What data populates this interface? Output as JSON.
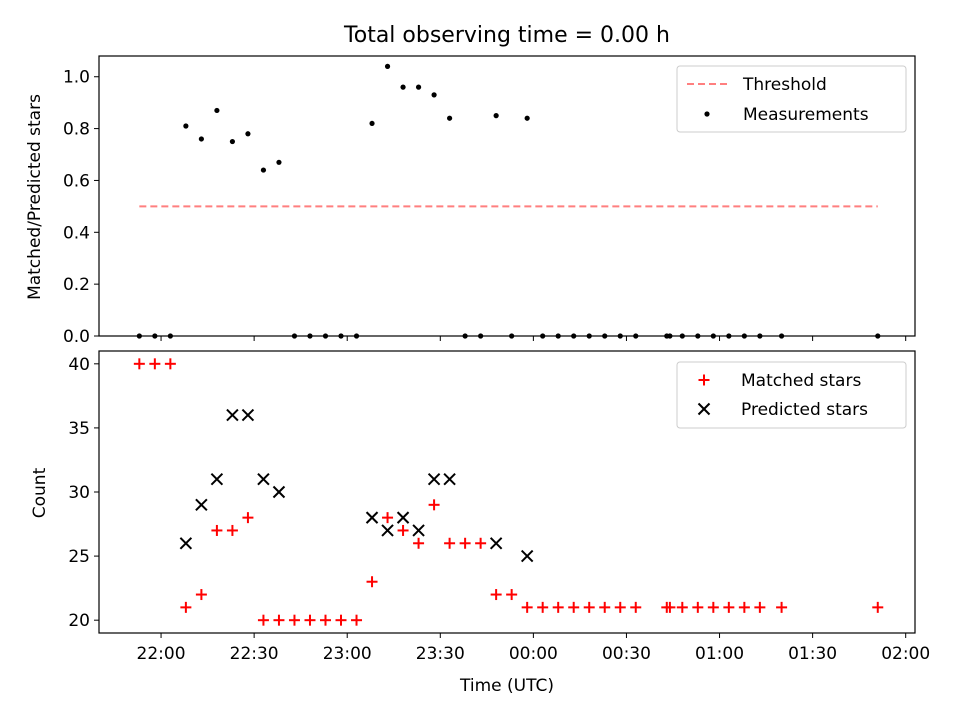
{
  "chart_data": [
    {
      "type": "scatter",
      "title": "Total observing time = 0.00 h",
      "xlabel": "",
      "ylabel": "Matched/Predicted stars",
      "ylim": [
        0,
        1.08
      ],
      "yticks": [
        "0.0",
        "0.2",
        "0.4",
        "0.6",
        "0.8",
        "1.0"
      ],
      "legend_position": "top-right",
      "threshold": {
        "name": "Threshold",
        "value": 0.5,
        "x_start": "21:53",
        "x_end": "01:51",
        "color": "#ff7f7f"
      },
      "series": [
        {
          "name": "Measurements",
          "color": "#000000",
          "points": [
            [
              "21:53",
              0.0
            ],
            [
              "21:58",
              0.0
            ],
            [
              "22:03",
              0.0
            ],
            [
              "22:08",
              0.81
            ],
            [
              "22:13",
              0.76
            ],
            [
              "22:18",
              0.87
            ],
            [
              "22:23",
              0.75
            ],
            [
              "22:28",
              0.78
            ],
            [
              "22:33",
              0.64
            ],
            [
              "22:38",
              0.67
            ],
            [
              "22:43",
              0.0
            ],
            [
              "22:48",
              0.0
            ],
            [
              "22:53",
              0.0
            ],
            [
              "22:58",
              0.0
            ],
            [
              "23:03",
              0.0
            ],
            [
              "23:08",
              0.82
            ],
            [
              "23:13",
              1.04
            ],
            [
              "23:18",
              0.96
            ],
            [
              "23:23",
              0.96
            ],
            [
              "23:28",
              0.93
            ],
            [
              "23:33",
              0.84
            ],
            [
              "23:38",
              0.0
            ],
            [
              "23:43",
              0.0
            ],
            [
              "23:48",
              0.85
            ],
            [
              "23:53",
              0.0
            ],
            [
              "23:58",
              0.84
            ],
            [
              "00:03",
              0.0
            ],
            [
              "00:08",
              0.0
            ],
            [
              "00:13",
              0.0
            ],
            [
              "00:18",
              0.0
            ],
            [
              "00:23",
              0.0
            ],
            [
              "00:28",
              0.0
            ],
            [
              "00:33",
              0.0
            ],
            [
              "00:43",
              0.0
            ],
            [
              "00:44",
              0.0
            ],
            [
              "00:48",
              0.0
            ],
            [
              "00:53",
              0.0
            ],
            [
              "00:58",
              0.0
            ],
            [
              "01:03",
              0.0
            ],
            [
              "01:08",
              0.0
            ],
            [
              "01:13",
              0.0
            ],
            [
              "01:20",
              0.0
            ],
            [
              "01:51",
              0.0
            ]
          ]
        }
      ]
    },
    {
      "type": "scatter",
      "title": "",
      "xlabel": "Time (UTC)",
      "ylabel": "Count",
      "ylim": [
        19,
        41
      ],
      "yticks": [
        "20",
        "25",
        "30",
        "35",
        "40"
      ],
      "xticks": [
        "22:00",
        "22:30",
        "23:00",
        "23:30",
        "00:00",
        "00:30",
        "01:00",
        "01:30",
        "02:00"
      ],
      "xlim": [
        "21:40",
        "02:03"
      ],
      "legend_position": "top-right",
      "series": [
        {
          "name": "Matched stars",
          "marker": "plus",
          "color": "#ff0000",
          "points": [
            [
              "21:53",
              40
            ],
            [
              "21:58",
              40
            ],
            [
              "22:03",
              40
            ],
            [
              "22:08",
              21
            ],
            [
              "22:13",
              22
            ],
            [
              "22:18",
              27
            ],
            [
              "22:23",
              27
            ],
            [
              "22:28",
              28
            ],
            [
              "22:33",
              20
            ],
            [
              "22:38",
              20
            ],
            [
              "22:43",
              20
            ],
            [
              "22:48",
              20
            ],
            [
              "22:53",
              20
            ],
            [
              "22:58",
              20
            ],
            [
              "23:03",
              20
            ],
            [
              "23:08",
              23
            ],
            [
              "23:13",
              28
            ],
            [
              "23:18",
              27
            ],
            [
              "23:23",
              26
            ],
            [
              "23:28",
              29
            ],
            [
              "23:33",
              26
            ],
            [
              "23:38",
              26
            ],
            [
              "23:43",
              26
            ],
            [
              "23:48",
              22
            ],
            [
              "23:53",
              22
            ],
            [
              "23:58",
              21
            ],
            [
              "00:03",
              21
            ],
            [
              "00:08",
              21
            ],
            [
              "00:13",
              21
            ],
            [
              "00:18",
              21
            ],
            [
              "00:23",
              21
            ],
            [
              "00:28",
              21
            ],
            [
              "00:33",
              21
            ],
            [
              "00:43",
              21
            ],
            [
              "00:44",
              21
            ],
            [
              "00:48",
              21
            ],
            [
              "00:53",
              21
            ],
            [
              "00:58",
              21
            ],
            [
              "01:03",
              21
            ],
            [
              "01:08",
              21
            ],
            [
              "01:13",
              21
            ],
            [
              "01:20",
              21
            ],
            [
              "01:51",
              21
            ]
          ]
        },
        {
          "name": "Predicted stars",
          "marker": "x",
          "color": "#000000",
          "points": [
            [
              "22:08",
              26
            ],
            [
              "22:13",
              29
            ],
            [
              "22:18",
              31
            ],
            [
              "22:23",
              36
            ],
            [
              "22:28",
              36
            ],
            [
              "22:33",
              31
            ],
            [
              "22:38",
              30
            ],
            [
              "23:08",
              28
            ],
            [
              "23:13",
              27
            ],
            [
              "23:18",
              28
            ],
            [
              "23:23",
              27
            ],
            [
              "23:28",
              31
            ],
            [
              "23:33",
              31
            ],
            [
              "23:48",
              26
            ],
            [
              "23:58",
              25
            ]
          ]
        }
      ]
    }
  ]
}
